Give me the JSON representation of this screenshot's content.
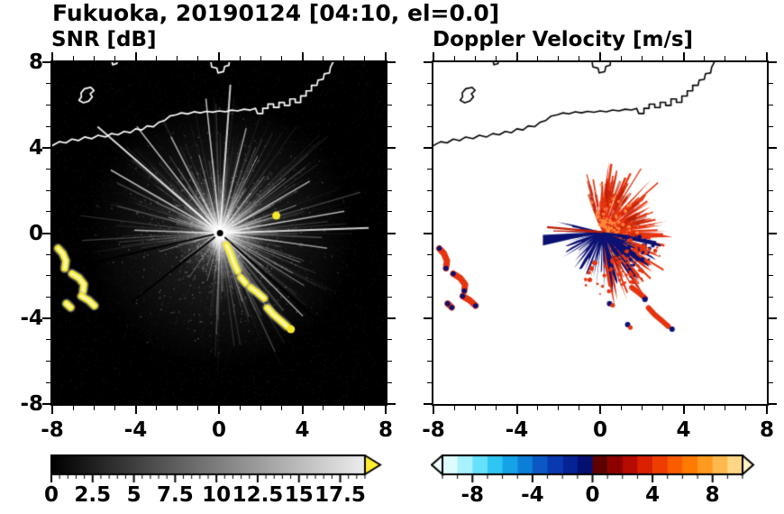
{
  "title": "Fukuoka, 20190124 [04:10, el=0.0]",
  "panels": {
    "snr": {
      "label": "SNR [dB]"
    },
    "doppler": {
      "label": "Doppler Velocity [m/s]"
    }
  },
  "axes": {
    "x_range": [
      -8,
      8
    ],
    "y_range": [
      -8,
      8
    ],
    "major_ticks": [
      -8,
      -4,
      0,
      4,
      8
    ],
    "minor_step": 1,
    "x_tick_labels": [
      "-8",
      "-4",
      "0",
      "4",
      "8"
    ],
    "y_tick_labels": [
      "8",
      "4",
      "0",
      "-4",
      "-8"
    ],
    "y_tick_values": [
      8,
      4,
      0,
      -4,
      -8
    ]
  },
  "colorbars": {
    "snr": {
      "min": 0,
      "max": 19,
      "tick_values": [
        0,
        2.5,
        5,
        7.5,
        10,
        12.5,
        15,
        17.5
      ],
      "tick_labels": [
        "0",
        "2.5",
        "5",
        "7.5",
        "10",
        "12.5",
        "15",
        "17.5"
      ],
      "minor_step": 0.5,
      "gradient": [
        "#000000",
        "#ededed"
      ],
      "over_color": "#ffee2e"
    },
    "doppler": {
      "min": -10,
      "max": 10,
      "tick_values": [
        -8,
        -4,
        0,
        4,
        8
      ],
      "tick_labels": [
        "-8",
        "-4",
        "0",
        "4",
        "8"
      ],
      "minor_step": 1,
      "segment_colors": [
        "#dcfcff",
        "#a8f1ff",
        "#66e1fc",
        "#30c6f3",
        "#14a3e8",
        "#0b7ed7",
        "#0b58c5",
        "#0839b0",
        "#052394",
        "#031070",
        "#5f0000",
        "#8c0000",
        "#b50b00",
        "#d92100",
        "#ef3d00",
        "#fa5c00",
        "#ff7b00",
        "#ff9a1e",
        "#ffb84d",
        "#ffd685"
      ],
      "under_color": "#effdff",
      "over_color": "#fff3c8"
    }
  },
  "chart_data": {
    "type": "heatmap",
    "title": "Fukuoka, 20190124 [04:10, el=0.0]",
    "panels": [
      {
        "name": "SNR",
        "units": "dB",
        "x_range": [
          -8,
          8
        ],
        "y_range": [
          -8,
          8
        ],
        "colormap": "grayscale 0 to 17.5 dB, over-range yellow",
        "radar_center": [
          0.05,
          0.0
        ],
        "description": "Black background with white radial ground-clutter streaks from radar at origin; saturated yellow echoes along an island chain SE of the radar and small arcs to the W; coastline drawn in white across the north."
      },
      {
        "name": "Doppler Velocity",
        "units": "m/s",
        "x_range": [
          -8,
          8
        ],
        "y_range": [
          -8,
          8
        ],
        "colormap": "cyan-blue-navy (negative) to dark red-orange (positive), -10 to 10 m/s",
        "radar_center": [
          0.1,
          0.05
        ],
        "description": "Positive (red/orange) velocities in a spiky fan N-NE of the radar; negative (navy) velocities S and SW including a narrow wedge pointing west; small red/navy echoes to the W and SSE; coastline drawn in black."
      }
    ],
    "radar_center": [
      0.05,
      0.0
    ],
    "coastline": [
      [
        -8,
        4.1
      ],
      [
        -7.65,
        4.28
      ],
      [
        -7.35,
        4.22
      ],
      [
        -7.05,
        4.4
      ],
      [
        -6.75,
        4.33
      ],
      [
        -6.45,
        4.5
      ],
      [
        -6.1,
        4.42
      ],
      [
        -5.8,
        4.58
      ],
      [
        -5.45,
        4.5
      ],
      [
        -5.15,
        4.66
      ],
      [
        -4.85,
        4.6
      ],
      [
        -4.55,
        4.76
      ],
      [
        -4.25,
        4.7
      ],
      [
        -4.0,
        4.88
      ],
      [
        -3.7,
        4.83
      ],
      [
        -3.45,
        5.02
      ],
      [
        -3.15,
        4.98
      ],
      [
        -2.9,
        5.18
      ],
      [
        -2.6,
        5.28
      ],
      [
        -2.35,
        5.48
      ],
      [
        -2.05,
        5.54
      ],
      [
        -1.8,
        5.63
      ],
      [
        -1.5,
        5.58
      ],
      [
        -1.2,
        5.68
      ],
      [
        -0.9,
        5.63
      ],
      [
        -0.6,
        5.7
      ],
      [
        -0.3,
        5.66
      ],
      [
        0,
        5.72
      ],
      [
        0.3,
        5.68
      ],
      [
        0.6,
        5.76
      ],
      [
        0.9,
        5.72
      ],
      [
        1.2,
        5.8
      ],
      [
        1.5,
        5.76
      ],
      [
        1.75,
        5.84
      ],
      [
        1.85,
        5.6
      ],
      [
        2.1,
        5.6
      ],
      [
        2.1,
        5.84
      ],
      [
        2.35,
        5.84
      ],
      [
        2.35,
        6.04
      ],
      [
        2.62,
        6.04
      ],
      [
        2.62,
        5.88
      ],
      [
        2.88,
        5.88
      ],
      [
        2.88,
        6.12
      ],
      [
        3.14,
        6.12
      ],
      [
        3.14,
        5.98
      ],
      [
        3.4,
        5.98
      ],
      [
        3.4,
        6.28
      ],
      [
        3.66,
        6.28
      ],
      [
        3.66,
        6.12
      ],
      [
        3.92,
        6.12
      ],
      [
        3.92,
        6.42
      ],
      [
        4.18,
        6.42
      ],
      [
        4.18,
        6.66
      ],
      [
        4.44,
        6.66
      ],
      [
        4.44,
        6.92
      ],
      [
        4.7,
        6.92
      ],
      [
        4.75,
        7.16
      ],
      [
        5.0,
        7.2
      ],
      [
        5.05,
        7.46
      ],
      [
        5.3,
        7.5
      ],
      [
        5.35,
        7.76
      ],
      [
        5.5,
        8.05
      ]
    ],
    "island_loop": [
      [
        -6.72,
        6.22
      ],
      [
        -6.5,
        6.1
      ],
      [
        -6.25,
        6.18
      ],
      [
        -6.08,
        6.38
      ],
      [
        -6.18,
        6.52
      ],
      [
        -6.0,
        6.68
      ],
      [
        -6.15,
        6.82
      ],
      [
        -6.45,
        6.76
      ],
      [
        -6.62,
        6.56
      ],
      [
        -6.6,
        6.38
      ]
    ],
    "top_feature": [
      [
        -0.4,
        8.1
      ],
      [
        -0.35,
        7.78
      ],
      [
        -0.1,
        7.72
      ],
      [
        -0.05,
        7.5
      ],
      [
        0.22,
        7.56
      ],
      [
        0.27,
        7.8
      ],
      [
        0.48,
        7.86
      ],
      [
        0.5,
        8.1
      ]
    ],
    "west_islet": [
      [
        -5.15,
        8.1
      ],
      [
        -5.1,
        7.88
      ],
      [
        -4.9,
        7.94
      ],
      [
        -4.88,
        8.1
      ]
    ],
    "echo_patches": {
      "west_arcs": [
        [
          [
            -7.72,
            -0.72
          ],
          [
            -7.5,
            -0.95
          ],
          [
            -7.35,
            -1.3
          ],
          [
            -7.4,
            -1.65
          ]
        ],
        [
          [
            -7.05,
            -1.9
          ],
          [
            -6.72,
            -2.1
          ],
          [
            -6.48,
            -2.4
          ],
          [
            -6.52,
            -2.7
          ]
        ],
        [
          [
            -6.6,
            -2.95
          ],
          [
            -6.25,
            -3.15
          ],
          [
            -5.98,
            -3.4
          ]
        ],
        [
          [
            -7.32,
            -3.3
          ],
          [
            -7.12,
            -3.48
          ]
        ]
      ],
      "southeast_chain": [
        [
          [
            0.35,
            -0.55
          ],
          [
            0.55,
            -0.95
          ],
          [
            0.72,
            -1.4
          ],
          [
            0.9,
            -1.78
          ]
        ],
        [
          [
            1.05,
            -2.08
          ],
          [
            1.28,
            -2.34
          ]
        ],
        [
          [
            1.52,
            -2.55
          ],
          [
            1.86,
            -2.8
          ],
          [
            2.16,
            -3.05
          ]
        ],
        [
          [
            2.32,
            -3.5
          ],
          [
            2.62,
            -3.82
          ],
          [
            2.96,
            -4.1
          ],
          [
            3.26,
            -4.36
          ]
        ]
      ],
      "isolated_dots": [
        [
          2.75,
          0.82
        ],
        [
          3.45,
          -4.5
        ]
      ]
    },
    "snr_bright_rays": [
      [
        178,
        95,
        0.65,
        1.5
      ],
      [
        163,
        60,
        0.5,
        1
      ],
      [
        150,
        140,
        0.7,
        1.5
      ],
      [
        139,
        180,
        0.85,
        2
      ],
      [
        128,
        150,
        0.7,
        1.5
      ],
      [
        117,
        120,
        0.6,
        1.5
      ],
      [
        105,
        90,
        0.5,
        1
      ],
      [
        96,
        150,
        0.75,
        1.5
      ],
      [
        86,
        165,
        0.8,
        2
      ],
      [
        76,
        120,
        0.6,
        1.5
      ],
      [
        64,
        95,
        0.55,
        1
      ],
      [
        52,
        80,
        0.5,
        1
      ],
      [
        40,
        95,
        0.5,
        1
      ],
      [
        30,
        115,
        0.6,
        1.5
      ],
      [
        20,
        90,
        0.5,
        1
      ],
      [
        10,
        140,
        0.7,
        1.5
      ],
      [
        2,
        165,
        0.8,
        2
      ],
      [
        -8,
        120,
        0.6,
        1.5
      ],
      [
        -20,
        95,
        0.5,
        1
      ],
      [
        -32,
        110,
        0.55,
        1
      ],
      [
        -45,
        130,
        0.6,
        1.5
      ],
      [
        -58,
        95,
        0.5,
        1
      ],
      [
        -72,
        80,
        0.45,
        1
      ],
      [
        -88,
        65,
        0.4,
        1
      ],
      [
        -105,
        55,
        0.35,
        1
      ],
      [
        -125,
        60,
        0.35,
        1
      ],
      [
        -145,
        55,
        0.3,
        1
      ],
      [
        -163,
        70,
        0.4,
        1
      ]
    ],
    "snr_shadow_rays": [
      [
        193,
        150
      ],
      [
        218,
        125
      ],
      [
        -42,
        145
      ]
    ],
    "doppler": {
      "apex": [
        0.1,
        0.05
      ],
      "red_fan_angles": [
        -88,
        114
      ],
      "navy_fan_angles": [
        166,
        354
      ],
      "red_color": "#e63410",
      "dark_red_color": "#bd1d03",
      "orange_color": "#ff8a3e",
      "navy_color": "#0c1173",
      "left_wedge": [
        [
          -2.75,
          -0.08
        ],
        [
          -2.75,
          -0.58
        ]
      ],
      "red_rays": [
        [
          -2.55,
          0.28
        ],
        [
          -2.25,
          0.1
        ]
      ],
      "navy_dots": [
        [
          0.45,
          -3.3
        ],
        [
          2.15,
          -3.1
        ],
        [
          3.45,
          -4.5
        ],
        [
          1.32,
          -4.28
        ]
      ],
      "red_dots": [
        [
          1.45,
          -4.42
        ],
        [
          2.5,
          -3.7
        ],
        [
          0.6,
          -3.38
        ]
      ]
    }
  }
}
